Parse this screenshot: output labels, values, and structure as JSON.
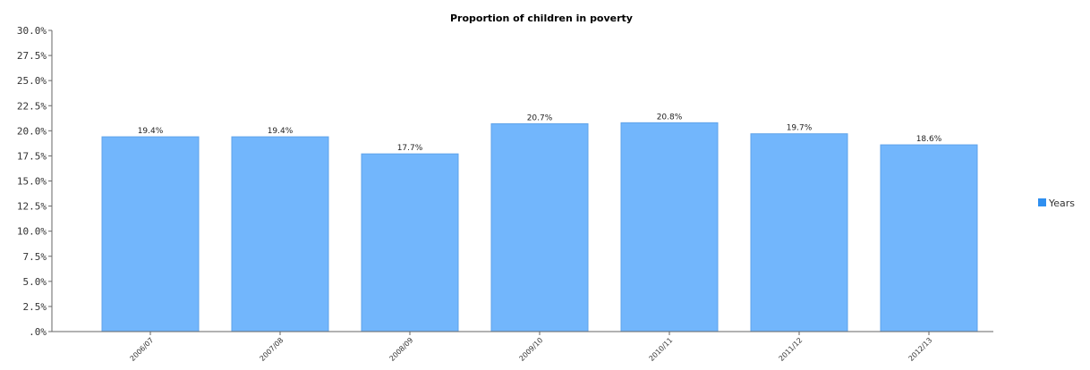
{
  "chart_data": {
    "type": "bar",
    "title": "Proportion of children in poverty",
    "xlabel": "",
    "ylabel": "",
    "categories": [
      "2006/07",
      "2007/08",
      "2008/09",
      "2009/10",
      "2010/11",
      "2011/12",
      "2012/13"
    ],
    "series": [
      {
        "name": "Years",
        "values": [
          19.4,
          19.4,
          17.7,
          20.7,
          20.8,
          19.7,
          18.6
        ]
      }
    ],
    "data_labels": [
      "19.4%",
      "19.4%",
      "17.7%",
      "20.7%",
      "20.8%",
      "19.7%",
      "18.6%"
    ],
    "ylim": [
      0,
      30
    ],
    "yticks": [
      0,
      2.5,
      5,
      7.5,
      10,
      12.5,
      15,
      17.5,
      20,
      22.5,
      25,
      27.5,
      30
    ],
    "ytick_labels": [
      ".0%",
      "2.5%",
      "5.0%",
      "7.5%",
      "10.0%",
      "12.5%",
      "15.0%",
      "17.5%",
      "20.0%",
      "22.5%",
      "25.0%",
      "27.5%",
      "30.0%"
    ],
    "grid": false,
    "legend_position": "right",
    "colors": {
      "bar_fill": "#72b6fc",
      "bar_stroke": "#5fa3ea",
      "legend_swatch": "#2f8ff0",
      "axis": "#666666"
    }
  }
}
